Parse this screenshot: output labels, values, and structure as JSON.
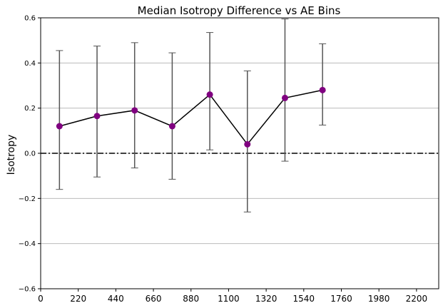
{
  "chart_data": {
    "type": "line",
    "title": "Median Isotropy Difference vs AE Bins",
    "xlabel": "",
    "ylabel": "Isotropy",
    "xlim": [
      0,
      2330
    ],
    "ylim": [
      -0.6,
      0.6
    ],
    "x_ticks": [
      0,
      220,
      440,
      660,
      880,
      1100,
      1320,
      1540,
      1760,
      1980,
      2200
    ],
    "y_ticks": [
      -0.6,
      -0.4,
      -0.2,
      0.0,
      0.2,
      0.4,
      0.6
    ],
    "y_tick_labels": [
      "−0.6",
      "−0.4",
      "−0.2",
      "0.0",
      "0.2",
      "0.4",
      "0.6"
    ],
    "grid": "horizontal",
    "reference_line": {
      "y": 0.0,
      "style": "dash-dot",
      "color": "#000000"
    },
    "series": [
      {
        "line_color": "#000000",
        "marker_color": "#800080",
        "errorbar_color": "#555555",
        "points": [
          {
            "x": 110,
            "y": 0.12,
            "lower": -0.16,
            "upper": 0.455
          },
          {
            "x": 330,
            "y": 0.165,
            "lower": -0.105,
            "upper": 0.475
          },
          {
            "x": 550,
            "y": 0.19,
            "lower": -0.065,
            "upper": 0.49
          },
          {
            "x": 770,
            "y": 0.12,
            "lower": -0.115,
            "upper": 0.445
          },
          {
            "x": 990,
            "y": 0.26,
            "lower": 0.015,
            "upper": 0.535
          },
          {
            "x": 1210,
            "y": 0.04,
            "lower": -0.26,
            "upper": 0.365
          },
          {
            "x": 1430,
            "y": 0.245,
            "lower": -0.035,
            "upper": 0.595
          },
          {
            "x": 1650,
            "y": 0.28,
            "lower": 0.125,
            "upper": 0.485
          }
        ]
      }
    ]
  }
}
